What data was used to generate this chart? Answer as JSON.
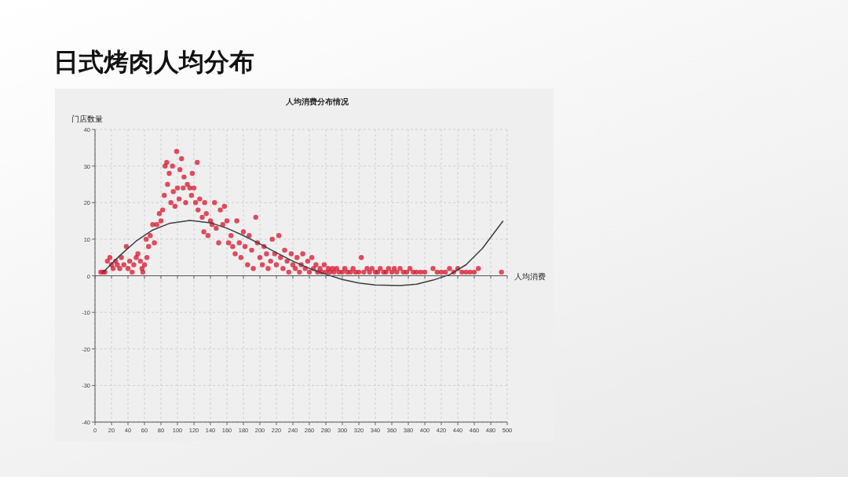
{
  "chart_data": {
    "type": "scatter",
    "title": "日式烤肉人均分布",
    "subtitle": "人均消费分布情况",
    "xlabel": "人均消费",
    "ylabel": "门店数量",
    "xlim": [
      0,
      500
    ],
    "ylim": [
      -40,
      40
    ],
    "xticks": [
      0,
      20,
      40,
      60,
      80,
      100,
      120,
      140,
      160,
      180,
      200,
      220,
      240,
      260,
      280,
      300,
      320,
      340,
      360,
      380,
      400,
      420,
      440,
      460,
      480,
      500
    ],
    "yticks": [
      -40,
      -30,
      -20,
      -10,
      0,
      10,
      20,
      30,
      40
    ],
    "grid": true,
    "marker": "circle",
    "series": [
      {
        "color": "#d7142c",
        "x": [
          7,
          10,
          12,
          15,
          18,
          20,
          22,
          25,
          27,
          30,
          32,
          35,
          38,
          40,
          42,
          45,
          47,
          50,
          52,
          55,
          57,
          58,
          60,
          62,
          63,
          65,
          67,
          70,
          72,
          75,
          78,
          80,
          82,
          84,
          85,
          87,
          88,
          90,
          92,
          94,
          95,
          97,
          99,
          100,
          102,
          103,
          105,
          107,
          108,
          110,
          112,
          115,
          117,
          118,
          120,
          122,
          124,
          125,
          127,
          130,
          132,
          133,
          135,
          137,
          140,
          142,
          145,
          147,
          150,
          152,
          155,
          157,
          160,
          162,
          165,
          167,
          170,
          172,
          175,
          177,
          180,
          182,
          185,
          187,
          190,
          192,
          195,
          197,
          200,
          203,
          205,
          208,
          210,
          213,
          215,
          218,
          220,
          223,
          225,
          228,
          230,
          233,
          235,
          238,
          240,
          243,
          245,
          248,
          250,
          252,
          255,
          258,
          260,
          263,
          265,
          268,
          270,
          273,
          275,
          278,
          280,
          283,
          285,
          288,
          290,
          293,
          296,
          300,
          303,
          306,
          310,
          313,
          316,
          320,
          323,
          326,
          330,
          333,
          336,
          340,
          343,
          346,
          350,
          353,
          356,
          360,
          363,
          366,
          370,
          374,
          378,
          382,
          386,
          390,
          395,
          400,
          410,
          415,
          420,
          425,
          430,
          435,
          440,
          445,
          450,
          455,
          460,
          465,
          493
        ],
        "values": [
          1,
          1,
          1,
          4,
          5,
          3,
          2,
          4,
          3,
          2,
          5,
          3,
          8,
          2,
          4,
          1,
          3,
          5,
          6,
          4,
          2,
          1,
          3,
          10,
          5,
          8,
          11,
          14,
          9,
          14,
          17,
          15,
          18,
          22,
          30,
          31,
          25,
          28,
          20,
          30,
          23,
          19,
          34,
          24,
          21,
          29,
          32,
          24,
          27,
          20,
          25,
          24,
          22,
          28,
          24,
          20,
          31,
          18,
          21,
          16,
          12,
          20,
          17,
          11,
          15,
          14,
          20,
          13,
          9,
          18,
          14,
          19,
          15,
          9,
          11,
          8,
          6,
          15,
          9,
          5,
          12,
          8,
          3,
          11,
          7,
          2,
          16,
          9,
          5,
          3,
          8,
          6,
          2,
          4,
          10,
          6,
          3,
          11,
          5,
          2,
          7,
          4,
          1,
          6,
          3,
          2,
          5,
          1,
          3,
          6,
          2,
          4,
          1,
          5,
          2,
          3,
          1,
          2,
          1,
          3,
          1,
          2,
          1,
          2,
          1,
          2,
          1,
          1,
          2,
          1,
          1,
          2,
          1,
          1,
          5,
          1,
          2,
          1,
          2,
          1,
          1,
          2,
          1,
          1,
          2,
          1,
          2,
          1,
          2,
          1,
          1,
          2,
          1,
          1,
          1,
          1,
          2,
          1,
          1,
          1,
          2,
          1,
          2,
          1,
          1,
          1,
          1,
          2,
          1
        ]
      },
      {
        "type": "line",
        "color": "#3a3f44",
        "marker": "none",
        "x": [
          10,
          30,
          50,
          70,
          90,
          115,
          140,
          160,
          180,
          200,
          220,
          240,
          260,
          280,
          300,
          320,
          340,
          370,
          390,
          410,
          430,
          450,
          470,
          495
        ],
        "values": [
          1,
          5.5,
          9.5,
          12.5,
          14.3,
          15.1,
          14.5,
          13,
          11,
          8.7,
          6.3,
          4,
          2,
          0.4,
          -1,
          -2,
          -2.5,
          -2.7,
          -2.3,
          -1.2,
          0.3,
          3,
          7.5,
          15
        ]
      }
    ]
  }
}
